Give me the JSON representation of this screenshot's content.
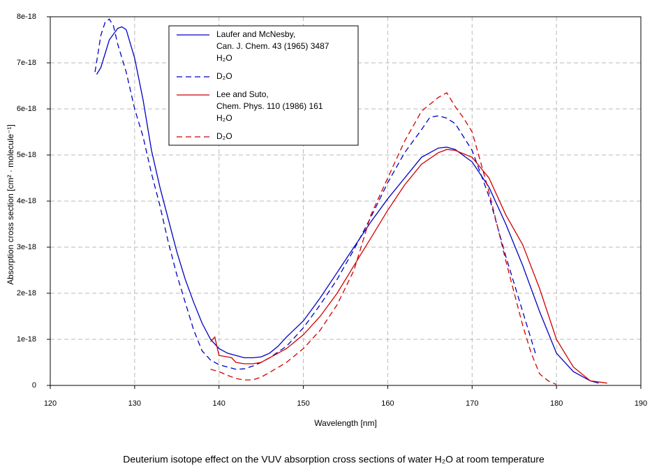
{
  "chart_data": {
    "type": "line",
    "caption": "Deuterium isotope effect on the VUV absorption cross sections of water H₂O at room temperature",
    "x_label": "Wavelength [nm]",
    "y_label": "Absorption cross section [cm² · molecule⁻¹]",
    "xlim": [
      120,
      190
    ],
    "xticks": [
      120,
      130,
      140,
      150,
      160,
      170,
      180,
      190
    ],
    "ylim": [
      0,
      8e-18
    ],
    "yticks": [
      0,
      1e-18,
      2e-18,
      3e-18,
      4e-18,
      5e-18,
      6e-18,
      7e-18,
      8e-18
    ],
    "grid": true,
    "legend": "upper-left",
    "series": [
      {
        "name": [
          "Laufer and McNesby,",
          "Can. J. Chem. 43 (1965) 3487",
          "H₂O"
        ],
        "color": "#0000c0",
        "dashed": false,
        "x": [
          125.5,
          126,
          127,
          128,
          128.5,
          129,
          130,
          131,
          132,
          133,
          134,
          135,
          136,
          137,
          138,
          139,
          140,
          141,
          142,
          143,
          144,
          145,
          146,
          147,
          148,
          150,
          152,
          154,
          156,
          158,
          160,
          162,
          164,
          166,
          167,
          168,
          170,
          172,
          174,
          176,
          178,
          180,
          182,
          184,
          185
        ],
        "values": [
          6.75e-18,
          6.9e-18,
          7.5e-18,
          7.75e-18,
          7.78e-18,
          7.72e-18,
          7.1e-18,
          6.2e-18,
          5.1e-18,
          4.3e-18,
          3.6e-18,
          2.9e-18,
          2.3e-18,
          1.8e-18,
          1.35e-18,
          1e-18,
          8e-19,
          7e-19,
          6.5e-19,
          6e-19,
          6e-19,
          6.2e-19,
          7e-19,
          8.5e-19,
          1.05e-18,
          1.4e-18,
          1.9e-18,
          2.45e-18,
          3e-18,
          3.55e-18,
          4.05e-18,
          4.5e-18,
          4.95e-18,
          5.15e-18,
          5.17e-18,
          5.12e-18,
          4.85e-18,
          4.3e-18,
          3.5e-18,
          2.6e-18,
          1.6e-18,
          7e-19,
          3e-19,
          1e-19,
          5e-20
        ]
      },
      {
        "name": [
          "D₂O"
        ],
        "color": "#0000c0",
        "dashed": true,
        "x": [
          125.3,
          126,
          126.5,
          127,
          127.5,
          128,
          129,
          130,
          131,
          132,
          133,
          134,
          135,
          136,
          137,
          138,
          139,
          140,
          141,
          142,
          143,
          144,
          145,
          146,
          148,
          150,
          152,
          154,
          156,
          158,
          160,
          162,
          164,
          165,
          166,
          167,
          168,
          170,
          172,
          174,
          176,
          177,
          177.5
        ],
        "values": [
          6.8e-18,
          7.6e-18,
          7.88e-18,
          7.95e-18,
          7.8e-18,
          7.4e-18,
          6.8e-18,
          6e-18,
          5.4e-18,
          4.6e-18,
          3.9e-18,
          3.1e-18,
          2.4e-18,
          1.8e-18,
          1.2e-18,
          7.5e-19,
          5.5e-19,
          4.5e-19,
          4e-19,
          3.5e-19,
          3.6e-19,
          4.2e-19,
          5e-19,
          6e-19,
          8.5e-19,
          1.25e-18,
          1.75e-18,
          2.3e-18,
          2.95e-18,
          3.65e-18,
          4.4e-18,
          5.05e-18,
          5.55e-18,
          5.82e-18,
          5.85e-18,
          5.8e-18,
          5.68e-18,
          5.1e-18,
          4.1e-18,
          2.8e-18,
          1.6e-18,
          1e-18,
          7e-19
        ]
      },
      {
        "name": [
          "Lee and Suto,",
          "Chem. Phys. 110 (1986) 161",
          "H₂O"
        ],
        "color": "#d00000",
        "dashed": false,
        "x": [
          139,
          139.5,
          140,
          141,
          141.5,
          142,
          143,
          144,
          145,
          146,
          148,
          150,
          152,
          154,
          156,
          158,
          160,
          162,
          164,
          166,
          167,
          168,
          170,
          172,
          174,
          176,
          178,
          180,
          182,
          184,
          186
        ],
        "values": [
          9.5e-19,
          1.05e-18,
          6.5e-19,
          6.2e-19,
          6e-19,
          5e-19,
          4.7e-19,
          4.7e-19,
          5e-19,
          6e-19,
          8e-19,
          1.1e-18,
          1.5e-18,
          2e-18,
          2.6e-18,
          3.2e-18,
          3.8e-18,
          4.35e-18,
          4.8e-18,
          5.05e-18,
          5.12e-18,
          5.1e-18,
          4.95e-18,
          4.5e-18,
          3.7e-18,
          3.05e-18,
          2.1e-18,
          1e-18,
          4e-19,
          1e-19,
          5e-20
        ]
      },
      {
        "name": [
          "D₂O"
        ],
        "color": "#d00000",
        "dashed": true,
        "x": [
          139,
          140,
          141,
          142,
          143,
          144,
          145,
          146,
          148,
          150,
          152,
          154,
          156,
          157,
          158,
          160,
          162,
          164,
          166,
          167,
          168,
          169,
          170,
          172,
          174,
          176,
          177,
          178,
          179,
          180
        ],
        "values": [
          3.5e-19,
          3e-19,
          2.2e-19,
          1.5e-19,
          1.2e-19,
          1.2e-19,
          1.8e-19,
          2.8e-19,
          5e-19,
          8e-19,
          1.2e-18,
          1.75e-18,
          2.5e-18,
          3.1e-18,
          3.7e-18,
          4.5e-18,
          5.3e-18,
          5.95e-18,
          6.25e-18,
          6.35e-18,
          6.05e-18,
          5.8e-18,
          5.5e-18,
          4.2e-18,
          2.7e-18,
          1.3e-18,
          7e-19,
          2.5e-19,
          1e-19,
          2e-20
        ]
      }
    ]
  }
}
